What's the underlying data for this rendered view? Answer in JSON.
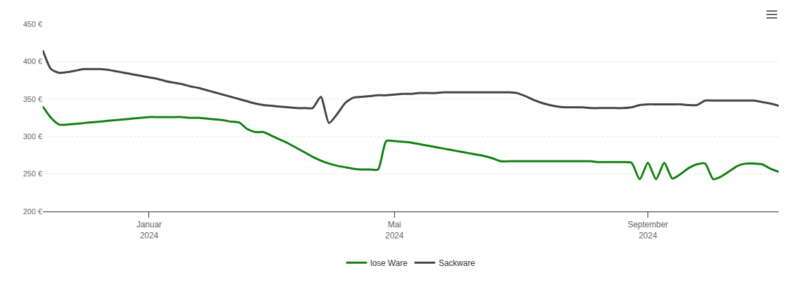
{
  "chart_data": {
    "type": "line",
    "categories": [
      null,
      null,
      null,
      null,
      null,
      null,
      null,
      null,
      null,
      null,
      null,
      null,
      null,
      "Januar 2024",
      null,
      null,
      null,
      null,
      null,
      null,
      null,
      null,
      null,
      null,
      null,
      null,
      null,
      null,
      null,
      null,
      null,
      null,
      null,
      null,
      null,
      null,
      null,
      null,
      null,
      null,
      null,
      null,
      null,
      "Mai 2024",
      null,
      null,
      null,
      null,
      null,
      null,
      null,
      null,
      null,
      null,
      null,
      null,
      null,
      null,
      null,
      null,
      null,
      null,
      null,
      null,
      null,
      null,
      null,
      null,
      null,
      null,
      null,
      null,
      null,
      null,
      "September 2024",
      null,
      null,
      null,
      null,
      null,
      null,
      null,
      null,
      null,
      null,
      null,
      null,
      null,
      null,
      null,
      null
    ],
    "series": [
      {
        "name": "lose Ware",
        "color": "#108010",
        "values": [
          340,
          325,
          316,
          316,
          317,
          318,
          319,
          320,
          321,
          322,
          323,
          324,
          325,
          326,
          326,
          326,
          326,
          326,
          325,
          325,
          324,
          323,
          322,
          320,
          319,
          310,
          306,
          306,
          301,
          296,
          291,
          285,
          279,
          273,
          268,
          264,
          261,
          259,
          257,
          256,
          256,
          256,
          294,
          294,
          293,
          292,
          290,
          288,
          286,
          284,
          282,
          280,
          278,
          276,
          274,
          271,
          267,
          267,
          267,
          267,
          267,
          267,
          267,
          267,
          267,
          267,
          267,
          267,
          266,
          266,
          266,
          266,
          265,
          243,
          265,
          243,
          265,
          244,
          250,
          258,
          263,
          264,
          243,
          247,
          254,
          261,
          264,
          264,
          263,
          257,
          253
        ]
      },
      {
        "name": "Sackware",
        "color": "#434348",
        "values": [
          415,
          390,
          385,
          386,
          388,
          390,
          390,
          390,
          389,
          387,
          385,
          383,
          381,
          379,
          377,
          374,
          372,
          370,
          367,
          365,
          362,
          359,
          356,
          353,
          350,
          347,
          344,
          342,
          341,
          340,
          339,
          338,
          338,
          338,
          353,
          318,
          330,
          345,
          352,
          353,
          354,
          355,
          355,
          356,
          357,
          357,
          358,
          358,
          358,
          359,
          359,
          359,
          359,
          359,
          359,
          359,
          359,
          359,
          358,
          354,
          349,
          345,
          342,
          340,
          339,
          339,
          339,
          338,
          338,
          338,
          338,
          338,
          339,
          342,
          343,
          343,
          343,
          343,
          343,
          342,
          342,
          348,
          348,
          348,
          348,
          348,
          348,
          348,
          346,
          344,
          341
        ]
      }
    ],
    "ylim": [
      200,
      450
    ],
    "yticks": [
      {
        "value": 200,
        "label": "200 €"
      },
      {
        "value": 250,
        "label": "250 €"
      },
      {
        "value": 300,
        "label": "300 €"
      },
      {
        "value": 350,
        "label": "350 €"
      },
      {
        "value": 400,
        "label": "400 €"
      },
      {
        "value": 450,
        "label": "450 €"
      }
    ],
    "grid": true,
    "legend": "bottom"
  }
}
